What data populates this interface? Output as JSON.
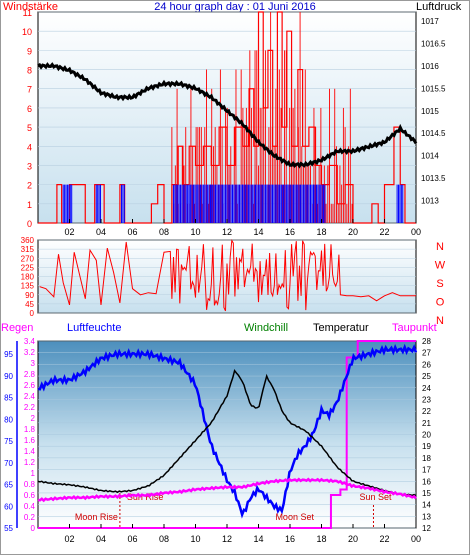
{
  "header": {
    "left": "Windstärke",
    "title": "24 hour graph day : 01 Juni 2016",
    "right": "Luftdruck"
  },
  "time_ticks": [
    "02",
    "04",
    "06",
    "08",
    "10",
    "12",
    "14",
    "16",
    "18",
    "20",
    "22",
    "00"
  ],
  "colors": {
    "wind": "#ff0000",
    "gust": "#0000ff",
    "pressure": "#000000",
    "humidity": "#0000ff",
    "windchill": "#008000",
    "temperature": "#000000",
    "dewpoint": "#ff00ff",
    "rain": "#ff00ff",
    "sun_moon": "#d00000",
    "axis_left": "#ff0000",
    "axis_blue": "#0000ff"
  },
  "panel2": {
    "compass": [
      "N",
      "W",
      "S",
      "O",
      "N"
    ]
  },
  "legend3": {
    "regen": "Regen",
    "luftfeuchte": "Luftfeuchte",
    "windchill": "Windchill",
    "temperatur": "Temperatur",
    "taupunkt": "Taupunkt"
  },
  "annotations": {
    "sun_rise": "Sun Rise",
    "sun_set": "Sun Set",
    "moon_rise": "Moon Rise",
    "moon_set": "Moon Set"
  },
  "chart_data": [
    {
      "type": "line",
      "x_unit": "hour",
      "xlim": [
        0,
        24
      ],
      "ylim_left": [
        0,
        11
      ],
      "ylim_right": [
        1012.5,
        1017.2
      ],
      "yticks_left": [
        "0",
        "1",
        "2",
        "3",
        "4",
        "5",
        "6",
        "7",
        "8",
        "9",
        "10",
        "11"
      ],
      "yticks_right": [
        "1013",
        "1013.5",
        "1014",
        "1014.5",
        "1015",
        "1015.5",
        "1016",
        "1016.5",
        "1017"
      ],
      "series": [
        {
          "name": "Luftdruck",
          "axis": "right",
          "x": [
            0,
            1,
            2,
            3,
            4,
            5,
            6,
            7,
            8,
            9,
            10,
            11,
            12,
            13,
            14,
            15,
            16,
            17,
            18,
            19,
            20,
            21,
            22,
            23,
            24
          ],
          "y": [
            1016.0,
            1016.0,
            1015.9,
            1015.7,
            1015.4,
            1015.3,
            1015.3,
            1015.5,
            1015.6,
            1015.6,
            1015.5,
            1015.3,
            1015.0,
            1014.7,
            1014.3,
            1014.0,
            1013.8,
            1013.8,
            1013.9,
            1014.1,
            1014.1,
            1014.2,
            1014.3,
            1014.6,
            1014.3
          ]
        }
      ],
      "wind_steps": [
        {
          "x0": 0.0,
          "x1": 1.2,
          "y": 0
        },
        {
          "x0": 1.2,
          "x1": 1.5,
          "y": 2
        },
        {
          "x0": 1.5,
          "x1": 2.0,
          "y": 0
        },
        {
          "x0": 2.0,
          "x1": 3.0,
          "y": 2
        },
        {
          "x0": 3.0,
          "x1": 3.6,
          "y": 0
        },
        {
          "x0": 3.6,
          "x1": 4.2,
          "y": 2
        },
        {
          "x0": 4.2,
          "x1": 5.2,
          "y": 0
        },
        {
          "x0": 5.2,
          "x1": 5.5,
          "y": 2
        },
        {
          "x0": 5.5,
          "x1": 7.2,
          "y": 0
        },
        {
          "x0": 7.2,
          "x1": 7.6,
          "y": 1
        },
        {
          "x0": 7.6,
          "x1": 8.0,
          "y": 2
        },
        {
          "x0": 8.0,
          "x1": 8.5,
          "y": 0
        },
        {
          "x0": 8.5,
          "x1": 8.9,
          "y": 2
        },
        {
          "x0": 8.9,
          "x1": 9.2,
          "y": 4
        },
        {
          "x0": 9.2,
          "x1": 9.6,
          "y": 2
        },
        {
          "x0": 9.6,
          "x1": 10.0,
          "y": 4
        },
        {
          "x0": 10.0,
          "x1": 10.5,
          "y": 3
        },
        {
          "x0": 10.5,
          "x1": 11.0,
          "y": 4
        },
        {
          "x0": 11.0,
          "x1": 11.5,
          "y": 3
        },
        {
          "x0": 11.5,
          "x1": 12.0,
          "y": 5
        },
        {
          "x0": 12.0,
          "x1": 12.5,
          "y": 3
        },
        {
          "x0": 12.5,
          "x1": 13.0,
          "y": 5
        },
        {
          "x0": 13.0,
          "x1": 13.4,
          "y": 4
        },
        {
          "x0": 13.4,
          "x1": 13.7,
          "y": 7
        },
        {
          "x0": 13.7,
          "x1": 14.0,
          "y": 4
        },
        {
          "x0": 14.0,
          "x1": 14.3,
          "y": 11
        },
        {
          "x0": 14.3,
          "x1": 14.6,
          "y": 6
        },
        {
          "x0": 14.6,
          "x1": 14.9,
          "y": 9
        },
        {
          "x0": 14.9,
          "x1": 15.2,
          "y": 4
        },
        {
          "x0": 15.2,
          "x1": 15.5,
          "y": 11
        },
        {
          "x0": 15.5,
          "x1": 15.8,
          "y": 5
        },
        {
          "x0": 15.8,
          "x1": 16.1,
          "y": 10
        },
        {
          "x0": 16.1,
          "x1": 16.5,
          "y": 4
        },
        {
          "x0": 16.5,
          "x1": 16.8,
          "y": 8
        },
        {
          "x0": 16.8,
          "x1": 17.2,
          "y": 4
        },
        {
          "x0": 17.2,
          "x1": 17.6,
          "y": 5
        },
        {
          "x0": 17.6,
          "x1": 18.0,
          "y": 3
        },
        {
          "x0": 18.0,
          "x1": 18.5,
          "y": 2
        },
        {
          "x0": 18.5,
          "x1": 19.0,
          "y": 3
        },
        {
          "x0": 19.0,
          "x1": 19.5,
          "y": 1
        },
        {
          "x0": 19.5,
          "x1": 20.0,
          "y": 2
        },
        {
          "x0": 20.0,
          "x1": 21.2,
          "y": 0
        },
        {
          "x0": 21.2,
          "x1": 21.6,
          "y": 1
        },
        {
          "x0": 21.6,
          "x1": 22.0,
          "y": 0
        },
        {
          "x0": 22.0,
          "x1": 22.6,
          "y": 2
        },
        {
          "x0": 22.6,
          "x1": 23.0,
          "y": 5
        },
        {
          "x0": 23.0,
          "x1": 23.3,
          "y": 2
        },
        {
          "x0": 23.3,
          "x1": 24.0,
          "y": 0
        }
      ],
      "gust_bars": [
        {
          "x0": 1.6,
          "x1": 2.2,
          "y": 2
        },
        {
          "x0": 3.7,
          "x1": 4.0,
          "y": 2
        },
        {
          "x0": 5.3,
          "x1": 5.5,
          "y": 2
        },
        {
          "x0": 8.6,
          "x1": 9.6,
          "y": 2
        },
        {
          "x0": 9.6,
          "x1": 11.0,
          "y": 2
        },
        {
          "x0": 11.0,
          "x1": 13.0,
          "y": 2
        },
        {
          "x0": 13.0,
          "x1": 15.5,
          "y": 2
        },
        {
          "x0": 15.5,
          "x1": 17.5,
          "y": 2
        },
        {
          "x0": 17.5,
          "x1": 18.3,
          "y": 2
        },
        {
          "x0": 22.8,
          "x1": 23.2,
          "y": 2
        }
      ]
    },
    {
      "type": "scatter",
      "xlim": [
        0,
        24
      ],
      "ylim": [
        0,
        360
      ],
      "yticks": [
        "0",
        "45",
        "90",
        "135",
        "180",
        "225",
        "270",
        "315",
        "360"
      ],
      "series": [
        {
          "name": "Windrichtung",
          "x": [
            0.1,
            0.5,
            1.0,
            1.3,
            1.6,
            2.0,
            2.3,
            2.6,
            3.0,
            3.3,
            3.7,
            4.0,
            4.4,
            4.8,
            5.2,
            5.6,
            6.0,
            6.5,
            7.0,
            7.5,
            8.0,
            8.4,
            8.8,
            9.2,
            9.6,
            10.0,
            10.4,
            10.8,
            11.2,
            11.6,
            12.0,
            12.4,
            12.8,
            13.2,
            13.6,
            14.0,
            14.4,
            14.8,
            15.2,
            15.6,
            16.0,
            16.4,
            16.8,
            17.2,
            17.6,
            18.0,
            18.4,
            18.8,
            19.2,
            19.6,
            20.0,
            20.5,
            21.0,
            21.5,
            22.0,
            22.5,
            23.0,
            23.5,
            24.0
          ],
          "y": [
            130,
            120,
            80,
            290,
            150,
            40,
            300,
            200,
            70,
            310,
            260,
            40,
            320,
            200,
            50,
            350,
            120,
            90,
            100,
            95,
            300,
            60,
            320,
            100,
            260,
            150,
            340,
            60,
            280,
            120,
            330,
            90,
            240,
            60,
            300,
            150,
            280,
            60,
            330,
            100,
            250,
            80,
            300,
            120,
            270,
            60,
            200,
            80,
            90,
            85,
            85,
            80,
            85,
            60,
            85,
            100,
            85,
            85,
            85
          ]
        }
      ]
    },
    {
      "type": "line",
      "xlim": [
        0,
        24
      ],
      "ylim_regen": [
        0,
        3.4
      ],
      "ylim_humidity": [
        55,
        98
      ],
      "ylim_temperature": [
        12,
        28
      ],
      "yticks_regen": [
        "0",
        "0.2",
        "0.4",
        "0.6",
        "0.8",
        "1",
        "1.2",
        "1.4",
        "1.6",
        "1.8",
        "2",
        "2.2",
        "2.4",
        "2.6",
        "2.8",
        "3",
        "3.2",
        "3.4"
      ],
      "yticks_humidity": [
        "55",
        "60",
        "65",
        "70",
        "75",
        "80",
        "85",
        "90",
        "95"
      ],
      "yticks_temperature": [
        "12",
        "13",
        "14",
        "15",
        "16",
        "17",
        "18",
        "19",
        "20",
        "21",
        "22",
        "23",
        "24",
        "25",
        "26",
        "27",
        "28"
      ],
      "series": [
        {
          "name": "Luftfeuchte",
          "axis": "humidity",
          "x": [
            0,
            1,
            2,
            3,
            4,
            5,
            6,
            7,
            8,
            9,
            10,
            11,
            11.5,
            12,
            12.5,
            13,
            13.5,
            14,
            14.5,
            15,
            15.5,
            16,
            16.5,
            17,
            17.5,
            18,
            18.5,
            19,
            19.5,
            20,
            21,
            22,
            23,
            24
          ],
          "y": [
            87,
            89,
            89,
            91,
            94,
            95,
            95,
            95,
            94,
            93,
            88,
            74,
            70,
            66,
            63,
            58,
            62,
            64,
            62,
            60,
            59,
            68,
            72,
            74,
            77,
            82,
            81,
            84,
            89,
            94,
            95,
            96,
            96,
            96
          ]
        },
        {
          "name": "Temperatur",
          "axis": "temperature",
          "x": [
            0,
            1,
            2,
            3,
            4,
            5,
            6,
            7,
            8,
            9,
            10,
            11,
            12,
            12.5,
            13,
            13.5,
            14,
            14.5,
            15,
            15.5,
            16,
            17,
            18,
            19,
            20,
            21,
            22,
            23,
            24
          ],
          "y": [
            16.0,
            15.8,
            15.7,
            15.5,
            15.2,
            15.1,
            15.2,
            15.6,
            16.5,
            18.0,
            19.5,
            21.0,
            23.3,
            25.5,
            24.5,
            22.5,
            22.2,
            25.0,
            23.8,
            22.0,
            21.0,
            20.3,
            19.0,
            17.2,
            16.0,
            15.6,
            15.2,
            14.9,
            14.8
          ]
        },
        {
          "name": "Taupunkt",
          "axis": "temperature",
          "x": [
            0,
            1,
            2,
            3,
            4,
            5,
            6,
            7,
            8,
            9,
            10,
            11,
            12,
            13,
            14,
            15,
            16,
            17,
            18,
            19,
            20,
            21,
            22,
            23,
            24
          ],
          "y": [
            14.4,
            14.5,
            14.6,
            14.6,
            14.7,
            14.7,
            14.8,
            14.8,
            15.0,
            15.1,
            15.3,
            15.4,
            15.5,
            15.5,
            15.8,
            16.0,
            16.1,
            16.1,
            16.1,
            16.0,
            15.6,
            15.4,
            15.1,
            14.9,
            14.6
          ]
        },
        {
          "name": "Regen",
          "axis": "regen",
          "x": [
            0,
            18.3,
            18.6,
            19.0,
            19.2,
            19.6,
            20.0,
            20.3,
            24.0
          ],
          "y": [
            0,
            0,
            0.6,
            0.6,
            0.7,
            3.1,
            3.1,
            3.4,
            3.4
          ]
        }
      ],
      "events": {
        "sun_rise": 5.2,
        "sun_set": 21.3,
        "moon_rise": 5.2,
        "moon_set": 16.6
      }
    }
  ]
}
